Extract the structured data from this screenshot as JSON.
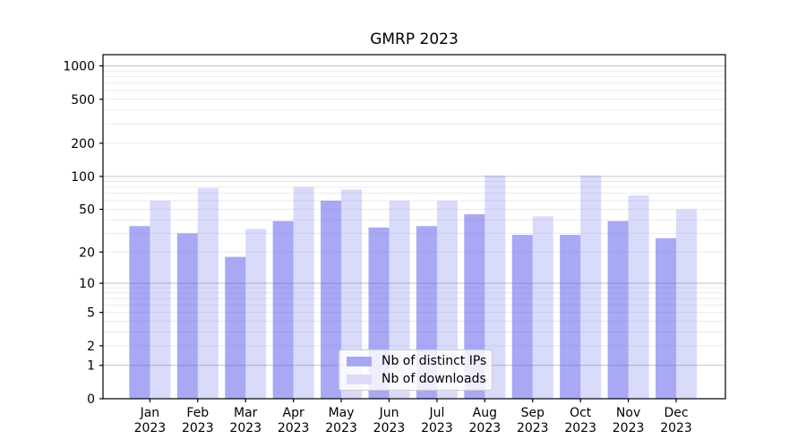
{
  "chart_data": {
    "type": "bar",
    "title": "GMRP 2023",
    "categories": [
      "Jan",
      "Feb",
      "Mar",
      "Apr",
      "May",
      "Jun",
      "Jul",
      "Aug",
      "Sep",
      "Oct",
      "Nov",
      "Dec"
    ],
    "x_label_year": "2023",
    "series": [
      {
        "name": "Nb of distinct IPs",
        "color": "#a8a8f2",
        "base_color": "#6666ee",
        "opacity": 0.57,
        "values": [
          35,
          30,
          18,
          39,
          60,
          34,
          35,
          45,
          29,
          29,
          39,
          27
        ]
      },
      {
        "name": "Nb of downloads",
        "color": "#dbdbf8",
        "base_color": "#6666ee",
        "opacity": 0.24,
        "values": [
          60,
          78,
          33,
          80,
          76,
          60,
          60,
          102,
          43,
          102,
          67,
          50
        ]
      }
    ],
    "y_ticks": [
      0,
      1,
      2,
      5,
      10,
      20,
      50,
      100,
      200,
      500,
      1000
    ],
    "y_scale": "log1p",
    "ylim": [
      0,
      1270
    ],
    "xlabel": "",
    "ylabel": "",
    "grid": {
      "orientation": "horizontal",
      "major_color": "#c6c6c6",
      "minor_color": "#ebebeb",
      "minor_subs": [
        2,
        3,
        4,
        5,
        6,
        7,
        8,
        9
      ]
    },
    "axis_color": "#000000",
    "legend": {
      "position": "lower-center",
      "entries": [
        "Nb of distinct IPs",
        "Nb of downloads"
      ]
    }
  }
}
